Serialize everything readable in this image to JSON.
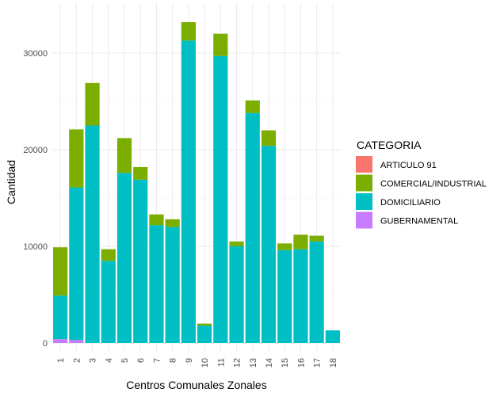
{
  "chart_data": {
    "type": "bar",
    "stacked": true,
    "xlabel": "Centros Comunales Zonales",
    "ylabel": "Cantidad",
    "categories": [
      "1",
      "2",
      "3",
      "4",
      "5",
      "6",
      "7",
      "8",
      "9",
      "10",
      "11",
      "12",
      "13",
      "14",
      "15",
      "16",
      "17",
      "18"
    ],
    "ylim": [
      0,
      33800
    ],
    "yticks": [
      0,
      10000,
      20000,
      30000
    ],
    "ytick_labels": [
      "0",
      "10000",
      "20000",
      "30000"
    ],
    "grid": true,
    "legend_position": "right",
    "legend_title": "CATEGORIA",
    "series": [
      {
        "name": "ARTICULO 91",
        "color": "#F8766D",
        "values": [
          0,
          0,
          0,
          0,
          0,
          0,
          0,
          0,
          0,
          0,
          0,
          0,
          0,
          0,
          0,
          0,
          0,
          0
        ]
      },
      {
        "name": "GUBERNAMENTAL",
        "color": "#C77CFF",
        "values": [
          400,
          300,
          0,
          0,
          0,
          0,
          0,
          0,
          0,
          0,
          0,
          0,
          0,
          0,
          0,
          0,
          0,
          0
        ]
      },
      {
        "name": "DOMICILIARIO",
        "color": "#00BFC4",
        "values": [
          4500,
          15800,
          22500,
          8500,
          17600,
          16900,
          12200,
          12000,
          31300,
          1800,
          29700,
          10000,
          23800,
          20400,
          9600,
          9700,
          10500,
          1300
        ]
      },
      {
        "name": "COMERCIAL/INDUSTRIAL",
        "color": "#7CAE00",
        "values": [
          5000,
          6000,
          4400,
          1200,
          3600,
          1300,
          1100,
          800,
          1900,
          200,
          2300,
          500,
          1300,
          1600,
          700,
          1500,
          600,
          0
        ]
      }
    ],
    "legend_order": [
      "ARTICULO 91",
      "COMERCIAL/INDUSTRIAL",
      "DOMICILIARIO",
      "GUBERNAMENTAL"
    ]
  }
}
